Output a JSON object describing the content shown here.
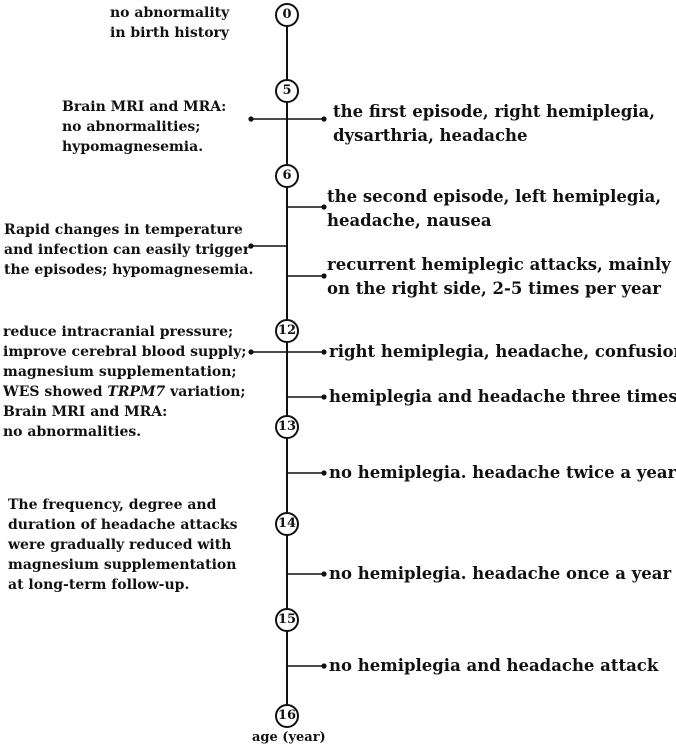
{
  "axis_label": "age (year)",
  "milestones": [
    "0",
    "5",
    "6",
    "12",
    "13",
    "14",
    "15",
    "16"
  ],
  "left_notes": [
    [
      "no abnormality",
      "in birth history"
    ],
    [
      "Brain MRI and MRA:",
      "no abnormalities;",
      "hypomagnesemia."
    ],
    [
      "Rapid changes in temperature",
      "and infection can easily trigger",
      "the episodes; hypomagnesemia."
    ],
    [
      "reduce intracranial pressure;",
      "improve cerebral blood supply;",
      "magnesium supplementation;",
      "WES showed ",
      "TRPM7",
      " variation;",
      "Brain MRI and MRA:",
      "no abnormalities."
    ],
    [
      "The frequency, degree and",
      "duration of headache attacks",
      "were gradually reduced with",
      "magnesium supplementation",
      "at long-term follow-up."
    ]
  ],
  "right_events": [
    [
      "the first episode, right hemiplegia,",
      "dysarthria, headache"
    ],
    [
      "the second episode, left hemiplegia,",
      "headache, nausea"
    ],
    [
      "recurrent hemiplegic attacks, mainly",
      "on the right side, 2-5 times per year"
    ],
    [
      "right hemiplegia, headache, confusion"
    ],
    [
      "hemiplegia and headache three times a"
    ],
    [
      "no hemiplegia. headache twice a year"
    ],
    [
      "no hemiplegia. headache once a year"
    ],
    [
      "no hemiplegia and headache attack"
    ]
  ]
}
